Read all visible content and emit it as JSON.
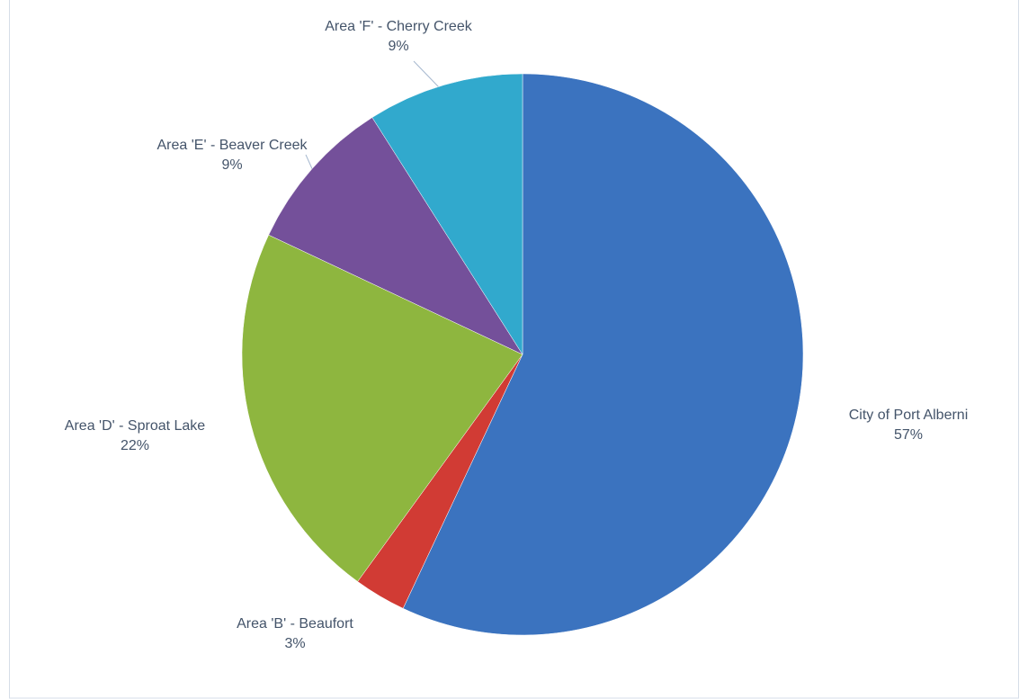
{
  "chart_data": {
    "type": "pie",
    "categories": [
      "City of Port Alberni",
      "Area 'B' - Beaufort",
      "Area 'D' - Sproat Lake",
      "Area 'E' - Beaver Creek",
      "Area 'F' - Cherry Creek"
    ],
    "values": [
      57,
      3,
      22,
      9,
      9
    ],
    "value_labels": [
      "57%",
      "3%",
      "22%",
      "9%",
      "9%"
    ],
    "colors": [
      "#3b73bf",
      "#d13b34",
      "#8eb63f",
      "#74509a",
      "#31a9cd"
    ]
  }
}
